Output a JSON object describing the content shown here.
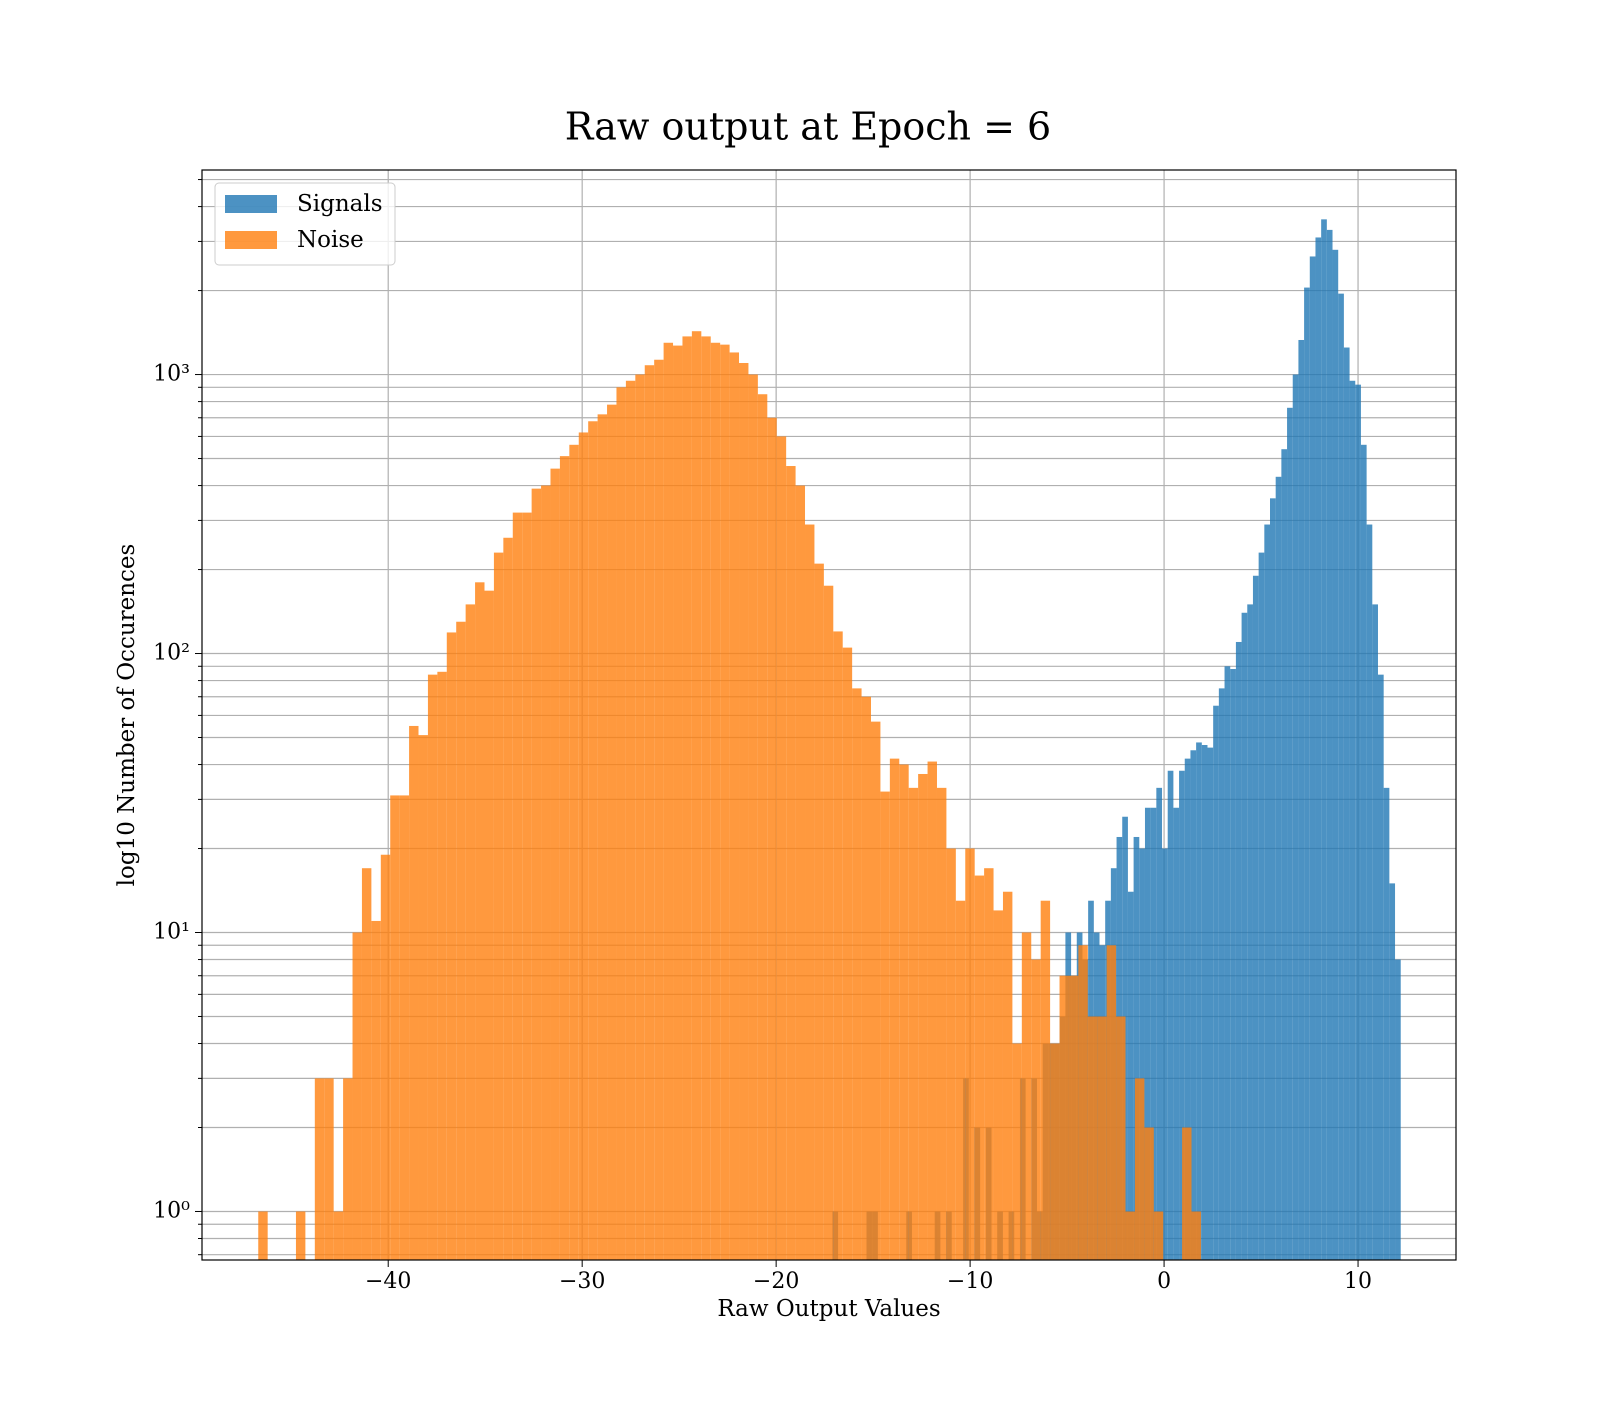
{
  "chart_data": {
    "type": "histogram",
    "title": "Raw output at Epoch = 6",
    "xlabel": "Raw Output Values",
    "ylabel": "log10 Number of Occurences",
    "yscale": "log",
    "grid": true,
    "legend": "upper left",
    "alpha": 0.8,
    "xlim": [
      -49.6,
      15.05
    ],
    "ylim": [
      0.67,
      5410
    ],
    "xticks": [
      {
        "value": -40,
        "label": "−40"
      },
      {
        "value": -30,
        "label": "−30"
      },
      {
        "value": -20,
        "label": "−20"
      },
      {
        "value": -10,
        "label": "−10"
      },
      0,
      10
    ],
    "yticks": [
      {
        "value": 1,
        "label": "10⁰"
      },
      {
        "value": 10,
        "label": "10¹"
      },
      {
        "value": 100,
        "label": "10²"
      },
      {
        "value": 1000,
        "label": "10³"
      }
    ],
    "yminorticks": [
      0.7,
      0.8,
      0.9,
      2,
      3,
      4,
      5,
      6,
      7,
      8,
      9,
      20,
      30,
      40,
      50,
      60,
      70,
      80,
      90,
      200,
      300,
      400,
      500,
      600,
      700,
      800,
      900,
      2000,
      3000,
      4000,
      5000
    ],
    "series": [
      {
        "name": "Signals",
        "color": "#1f77b4",
        "bins": [
          -17.1,
          -16.807,
          -16.514,
          -16.221,
          -15.928,
          -15.635,
          -15.342,
          -15.049,
          -14.756,
          -14.463,
          -14.17,
          -13.877,
          -13.584,
          -13.291,
          -12.998,
          -12.705,
          -12.412,
          -12.119,
          -11.826,
          -11.533,
          -11.24,
          -10.947,
          -10.654,
          -10.361,
          -10.068,
          -9.775,
          -9.482,
          -9.189,
          -8.896,
          -8.603,
          -8.31,
          -8.017,
          -7.724,
          -7.431,
          -7.138,
          -6.845,
          -6.552,
          -6.259,
          -5.966,
          -5.673,
          -5.38,
          -5.087,
          -4.794,
          -4.501,
          -4.208,
          -3.915,
          -3.622,
          -3.329,
          -3.036,
          -2.743,
          -2.45,
          -2.157,
          -1.864,
          -1.571,
          -1.278,
          -0.985,
          -0.692,
          -0.399,
          -0.106,
          0.187,
          0.48,
          0.773,
          1.066,
          1.359,
          1.652,
          1.945,
          2.238,
          2.531,
          2.824,
          3.117,
          3.41,
          3.703,
          3.996,
          4.289,
          4.582,
          4.875,
          5.168,
          5.461,
          5.754,
          6.047,
          6.34,
          6.633,
          6.926,
          7.219,
          7.512,
          7.805,
          8.098,
          8.391,
          8.684,
          8.977,
          9.27,
          9.563,
          9.856,
          10.149,
          10.442,
          10.735,
          11.028,
          11.321,
          11.614,
          11.907,
          12.2
        ],
        "values": [
          1,
          0,
          0,
          0,
          0,
          0,
          1,
          1,
          0,
          0,
          0,
          0,
          0,
          1,
          0,
          0,
          0,
          0,
          1,
          0,
          1,
          0,
          0,
          3,
          0,
          2,
          0,
          2,
          0,
          1,
          0,
          1,
          0,
          3,
          0,
          3,
          1,
          4,
          4,
          4,
          5,
          10,
          7,
          10,
          8,
          13,
          10,
          9,
          13,
          17,
          22,
          26,
          14,
          22,
          20,
          28,
          28,
          33,
          20,
          38,
          28,
          38,
          42,
          45,
          48,
          47,
          46,
          65,
          75,
          90,
          88,
          110,
          140,
          150,
          190,
          230,
          290,
          360,
          430,
          540,
          760,
          1000,
          1330,
          2050,
          2650,
          3100,
          3600,
          3300,
          2800,
          1950,
          1250,
          950,
          920,
          560,
          290,
          150,
          84,
          33,
          15,
          8
        ]
      },
      {
        "name": "Noise",
        "color": "#ff7f0e",
        "bins": [
          -46.7,
          -46.214,
          -45.728,
          -45.242,
          -44.756,
          -44.27,
          -43.784,
          -43.298,
          -42.812,
          -42.326,
          -41.84,
          -41.354,
          -40.868,
          -40.382,
          -39.896,
          -39.41,
          -38.924,
          -38.438,
          -37.952,
          -37.466,
          -36.98,
          -36.494,
          -36.008,
          -35.522,
          -35.036,
          -34.55,
          -34.064,
          -33.578,
          -33.092,
          -32.606,
          -32.12,
          -31.634,
          -31.148,
          -30.662,
          -30.176,
          -29.69,
          -29.204,
          -28.718,
          -28.232,
          -27.746,
          -27.26,
          -26.774,
          -26.288,
          -25.802,
          -25.316,
          -24.83,
          -24.344,
          -23.858,
          -23.372,
          -22.886,
          -22.4,
          -21.914,
          -21.428,
          -20.942,
          -20.456,
          -19.97,
          -19.484,
          -18.998,
          -18.512,
          -18.026,
          -17.54,
          -17.054,
          -16.568,
          -16.082,
          -15.596,
          -15.11,
          -14.624,
          -14.138,
          -13.652,
          -13.166,
          -12.68,
          -12.194,
          -11.708,
          -11.222,
          -10.736,
          -10.25,
          -9.764,
          -9.278,
          -8.792,
          -8.306,
          -7.82,
          -7.334,
          -6.848,
          -6.362,
          -5.876,
          -5.39,
          -4.904,
          -4.418,
          -3.932,
          -3.446,
          -2.96,
          -2.474,
          -1.988,
          -1.502,
          -1.016,
          -0.53,
          -0.044,
          0.442,
          0.928,
          1.414,
          1.9
        ],
        "values": [
          1,
          0,
          0,
          0,
          1,
          0,
          3,
          3,
          1,
          3,
          10,
          17,
          11,
          19,
          31,
          31,
          55,
          51,
          84,
          86,
          119,
          130,
          150,
          180,
          168,
          230,
          260,
          320,
          320,
          390,
          400,
          460,
          510,
          560,
          620,
          680,
          720,
          780,
          900,
          950,
          1000,
          1080,
          1130,
          1300,
          1270,
          1370,
          1430,
          1370,
          1300,
          1280,
          1200,
          1100,
          1000,
          850,
          700,
          600,
          470,
          400,
          290,
          210,
          175,
          120,
          105,
          75,
          70,
          57,
          32,
          42,
          40,
          33,
          37,
          41,
          33,
          20,
          13,
          20,
          16,
          17,
          12,
          14,
          4,
          10,
          8,
          13,
          4,
          7,
          7,
          9,
          5,
          5,
          9,
          5,
          1,
          3,
          2,
          1,
          0,
          0,
          2,
          1
        ]
      }
    ]
  }
}
